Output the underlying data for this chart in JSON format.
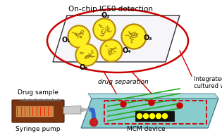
{
  "title": "On-chip IC50 detection",
  "label_drug_sample": "Drug sample",
  "label_syringe": "Syringe pump",
  "label_drug_sep": "drug separation",
  "label_integrated": "Integrated cell\ncultured wells",
  "label_mcm": "MCM device",
  "well_labels": [
    "O₁",
    "O₂",
    "O₃",
    "O₄",
    "O₅"
  ],
  "bg_color": "#ffffff",
  "text_color": "#000000",
  "plate_face": "#f5f5fa",
  "plate_edge": "#333333",
  "well_outer": "#b8860b",
  "well_inner": "#ffee22",
  "cell_color": "#997711",
  "ellipse_color": "#cc0000",
  "mcm_face": "#88cccc",
  "mcm_edge": "#336688",
  "mcm_top_face": "#aadddd",
  "channel_color": "#22aa22",
  "chip_color": "#111111",
  "led_color": "#ffff00",
  "red_dot_color": "#cc0000",
  "tube_color": "#3366cc",
  "syringe_body": "#7B3410",
  "syringe_light": "#cc8844",
  "needle_color": "#aaaaaa",
  "coil_color": "#666666"
}
